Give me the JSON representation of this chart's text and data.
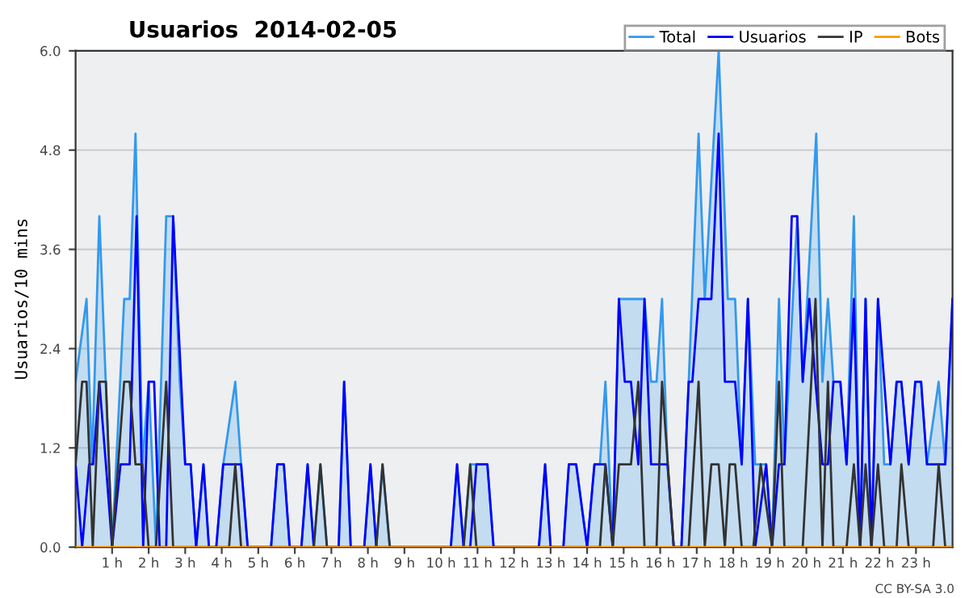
{
  "chart_data": {
    "type": "line",
    "title": "Usuarios  2014-02-05",
    "ylabel": "Usuarios/10 mins",
    "annotations": [
      "CC BY-SA 3.0"
    ],
    "xlim": [
      0,
      24
    ],
    "xticks": [
      {
        "value": 1,
        "label": "1 h"
      },
      {
        "value": 2,
        "label": "2 h"
      },
      {
        "value": 3,
        "label": "3 h"
      },
      {
        "value": 4,
        "label": "4 h"
      },
      {
        "value": 5,
        "label": "5 h"
      },
      {
        "value": 6,
        "label": "6 h"
      },
      {
        "value": 7,
        "label": "7 h"
      },
      {
        "value": 8,
        "label": "8 h"
      },
      {
        "value": 9,
        "label": "9 h"
      },
      {
        "value": 10,
        "label": "10 h"
      },
      {
        "value": 11,
        "label": "11 h"
      },
      {
        "value": 12,
        "label": "12 h"
      },
      {
        "value": 13,
        "label": "13 h"
      },
      {
        "value": 14,
        "label": "14 h"
      },
      {
        "value": 15,
        "label": "15 h"
      },
      {
        "value": 16,
        "label": "16 h"
      },
      {
        "value": 17,
        "label": "17 h"
      },
      {
        "value": 18,
        "label": "18 h"
      },
      {
        "value": 19,
        "label": "19 h"
      },
      {
        "value": 20,
        "label": "20 h"
      },
      {
        "value": 21,
        "label": "21 h"
      },
      {
        "value": 22,
        "label": "22 h"
      },
      {
        "value": 23,
        "label": "23 h"
      }
    ],
    "ylim": [
      0,
      6
    ],
    "yticks": [
      {
        "value": 0,
        "label": "0.0"
      },
      {
        "value": 1.2,
        "label": "1.2"
      },
      {
        "value": 2.4,
        "label": "2.4"
      },
      {
        "value": 3.6,
        "label": "3.6"
      },
      {
        "value": 4.8,
        "label": "4.8"
      },
      {
        "value": 6,
        "label": "6.0"
      }
    ],
    "grid": "y",
    "legend": "top right",
    "marker": "none",
    "line_style": "solid",
    "series": [
      {
        "name": "Total",
        "type": "area",
        "color": "#3399ee",
        "x": [
          0,
          0.3,
          0.45,
          0.65,
          1.0,
          1.33,
          1.48,
          1.64,
          1.83,
          2.0,
          2.2,
          2.48,
          2.67,
          2.85,
          3.0,
          3.15,
          3.3,
          3.5,
          3.65,
          3.85,
          4.04,
          4.37,
          4.53,
          4.71,
          5.35,
          5.52,
          5.7,
          5.86,
          6.18,
          6.35,
          6.52,
          6.7,
          6.88,
          7.2,
          7.35,
          7.53,
          7.9,
          8.07,
          8.23,
          8.4,
          8.6,
          10.27,
          10.44,
          10.62,
          10.8,
          10.97,
          11.27,
          11.44,
          12.68,
          12.85,
          13.0,
          13.35,
          13.5,
          13.7,
          14.0,
          14.2,
          14.35,
          14.5,
          14.7,
          14.87,
          15.57,
          15.75,
          15.9,
          16.05,
          16.2,
          16.37,
          16.58,
          16.78,
          17.05,
          17.22,
          17.6,
          17.85,
          18.05,
          18.23,
          18.4,
          18.6,
          18.9,
          19.06,
          19.25,
          19.4,
          19.75,
          19.9,
          20.27,
          20.44,
          20.59,
          20.74,
          20.93,
          21.1,
          21.3,
          21.47,
          21.62,
          21.78,
          21.96,
          22.13,
          22.3,
          22.47,
          22.6,
          22.8,
          22.98,
          23.14,
          23.3,
          23.62,
          23.8,
          24.0
        ],
        "values": [
          2,
          3,
          1,
          4,
          0,
          3,
          3,
          5,
          1,
          2,
          0,
          4,
          4,
          2,
          1,
          1,
          0,
          1,
          0,
          0,
          1,
          2,
          1,
          0,
          0,
          1,
          1,
          0,
          0,
          1,
          0,
          1,
          0,
          0,
          2,
          0,
          0,
          1,
          0,
          1,
          0,
          0,
          1,
          0,
          1,
          1,
          1,
          0,
          0,
          1,
          0,
          0,
          1,
          1,
          0,
          1,
          1,
          2,
          0,
          3,
          3,
          2,
          2,
          3,
          1,
          0,
          0,
          2,
          5,
          3,
          6,
          3,
          3,
          1,
          3,
          1,
          1,
          0,
          3,
          1,
          4,
          2,
          5,
          2,
          3,
          2,
          2,
          1,
          4,
          0,
          3,
          0,
          3,
          1,
          1,
          2,
          2,
          1,
          2,
          2,
          1,
          2,
          1,
          3
        ]
      },
      {
        "name": "Usuarios",
        "color": "#0000ff",
        "x": [
          0,
          0.18,
          0.37,
          0.48,
          0.65,
          0.83,
          1.0,
          1.23,
          1.48,
          1.67,
          1.85,
          2.0,
          2.15,
          2.3,
          2.48,
          2.67,
          3.0,
          3.15,
          3.3,
          3.5,
          3.65,
          3.85,
          4.04,
          4.53,
          4.71,
          5.35,
          5.52,
          5.7,
          5.86,
          6.18,
          6.35,
          6.52,
          7.2,
          7.35,
          7.53,
          7.9,
          8.07,
          8.23,
          10.27,
          10.44,
          10.62,
          10.8,
          10.97,
          11.27,
          11.44,
          12.68,
          12.85,
          13.0,
          13.35,
          13.5,
          13.7,
          14.0,
          14.2,
          14.5,
          14.7,
          14.87,
          15.03,
          15.2,
          15.4,
          15.57,
          15.75,
          16.2,
          16.37,
          16.58,
          16.78,
          16.88,
          17.05,
          17.4,
          17.6,
          17.77,
          18.05,
          18.23,
          18.4,
          18.6,
          18.9,
          19.06,
          19.25,
          19.4,
          19.6,
          19.75,
          19.9,
          20.08,
          20.25,
          20.44,
          20.59,
          20.74,
          20.93,
          21.1,
          21.3,
          21.47,
          21.62,
          21.78,
          21.96,
          22.13,
          22.3,
          22.47,
          22.6,
          22.8,
          22.98,
          23.14,
          23.3,
          23.8,
          24.0
        ],
        "values": [
          1,
          0,
          1,
          1,
          2,
          1,
          0,
          1,
          1,
          4,
          0,
          2,
          2,
          0,
          0,
          4,
          1,
          1,
          0,
          1,
          0,
          0,
          1,
          1,
          0,
          0,
          1,
          1,
          0,
          0,
          1,
          0,
          0,
          2,
          0,
          0,
          1,
          0,
          0,
          1,
          0,
          0,
          1,
          1,
          0,
          0,
          1,
          0,
          0,
          1,
          1,
          0,
          1,
          1,
          0,
          3,
          2,
          2,
          1,
          3,
          1,
          1,
          0,
          0,
          2,
          2,
          3,
          3,
          5,
          2,
          2,
          1,
          3,
          0,
          1,
          0,
          1,
          1,
          4,
          4,
          2,
          3,
          2,
          1,
          1,
          2,
          2,
          1,
          3,
          0,
          3,
          0,
          3,
          2,
          1,
          2,
          2,
          1,
          2,
          2,
          1,
          1,
          3
        ]
      },
      {
        "name": "IP",
        "color": "#333333",
        "x": [
          0,
          0.18,
          0.3,
          0.47,
          0.65,
          0.83,
          1.0,
          1.33,
          1.48,
          1.64,
          1.83,
          2.0,
          2.2,
          2.48,
          2.67,
          4.2,
          4.37,
          4.53,
          6.52,
          6.7,
          6.88,
          8.23,
          8.4,
          8.6,
          10.62,
          10.8,
          10.97,
          14.35,
          14.5,
          14.7,
          14.87,
          15.2,
          15.4,
          15.57,
          15.9,
          16.05,
          16.37,
          16.78,
          17.05,
          17.22,
          17.4,
          17.6,
          17.77,
          17.9,
          18.05,
          18.23,
          18.55,
          18.75,
          19.06,
          19.25,
          19.4,
          19.9,
          20.25,
          20.44,
          20.59,
          20.74,
          21.1,
          21.3,
          21.47,
          21.62,
          21.78,
          21.96,
          22.13,
          22.47,
          22.6,
          22.8,
          23.47,
          23.62,
          23.8,
          24.0
        ],
        "values": [
          1,
          2,
          2,
          0,
          2,
          2,
          0,
          2,
          2,
          1,
          1,
          0,
          0,
          2,
          0,
          0,
          1,
          0,
          0,
          1,
          0,
          0,
          1,
          0,
          0,
          1,
          0,
          0,
          1,
          0,
          1,
          1,
          2,
          0,
          0,
          2,
          0,
          0,
          2,
          0,
          1,
          1,
          0,
          1,
          1,
          0,
          0,
          1,
          0,
          2,
          0,
          0,
          3,
          0,
          2,
          0,
          0,
          1,
          0,
          1,
          0,
          1,
          0,
          0,
          1,
          0,
          0,
          1,
          0,
          0
        ]
      },
      {
        "name": "Bots",
        "color": "#ff9900",
        "x": [
          0,
          24
        ],
        "values": [
          0,
          0
        ]
      }
    ]
  }
}
